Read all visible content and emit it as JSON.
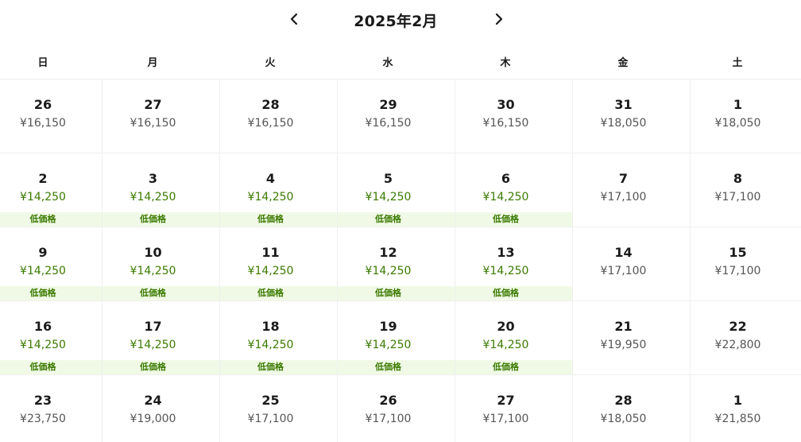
{
  "calendar": {
    "title": "2025年2月",
    "prev_icon": "chevron-left-icon",
    "next_icon": "chevron-right-icon",
    "weekdays": [
      "日",
      "月",
      "火",
      "水",
      "木",
      "金",
      "土"
    ],
    "low_price_label": "低価格",
    "colors": {
      "low_price_text": "#3b7a00",
      "low_price_bg": "#f0f9e6",
      "normal_price_text": "#555555"
    },
    "weeks": [
      [
        {
          "day": "26",
          "price": "¥16,150",
          "low": false
        },
        {
          "day": "27",
          "price": "¥16,150",
          "low": false
        },
        {
          "day": "28",
          "price": "¥16,150",
          "low": false
        },
        {
          "day": "29",
          "price": "¥16,150",
          "low": false
        },
        {
          "day": "30",
          "price": "¥16,150",
          "low": false
        },
        {
          "day": "31",
          "price": "¥18,050",
          "low": false
        },
        {
          "day": "1",
          "price": "¥18,050",
          "low": false
        }
      ],
      [
        {
          "day": "2",
          "price": "¥14,250",
          "low": true
        },
        {
          "day": "3",
          "price": "¥14,250",
          "low": true
        },
        {
          "day": "4",
          "price": "¥14,250",
          "low": true
        },
        {
          "day": "5",
          "price": "¥14,250",
          "low": true
        },
        {
          "day": "6",
          "price": "¥14,250",
          "low": true
        },
        {
          "day": "7",
          "price": "¥17,100",
          "low": false
        },
        {
          "day": "8",
          "price": "¥17,100",
          "low": false
        }
      ],
      [
        {
          "day": "9",
          "price": "¥14,250",
          "low": true
        },
        {
          "day": "10",
          "price": "¥14,250",
          "low": true
        },
        {
          "day": "11",
          "price": "¥14,250",
          "low": true
        },
        {
          "day": "12",
          "price": "¥14,250",
          "low": true
        },
        {
          "day": "13",
          "price": "¥14,250",
          "low": true
        },
        {
          "day": "14",
          "price": "¥17,100",
          "low": false
        },
        {
          "day": "15",
          "price": "¥17,100",
          "low": false
        }
      ],
      [
        {
          "day": "16",
          "price": "¥14,250",
          "low": true
        },
        {
          "day": "17",
          "price": "¥14,250",
          "low": true
        },
        {
          "day": "18",
          "price": "¥14,250",
          "low": true
        },
        {
          "day": "19",
          "price": "¥14,250",
          "low": true
        },
        {
          "day": "20",
          "price": "¥14,250",
          "low": true
        },
        {
          "day": "21",
          "price": "¥19,950",
          "low": false
        },
        {
          "day": "22",
          "price": "¥22,800",
          "low": false
        }
      ],
      [
        {
          "day": "23",
          "price": "¥23,750",
          "low": false
        },
        {
          "day": "24",
          "price": "¥19,000",
          "low": false
        },
        {
          "day": "25",
          "price": "¥17,100",
          "low": false
        },
        {
          "day": "26",
          "price": "¥17,100",
          "low": false
        },
        {
          "day": "27",
          "price": "¥17,100",
          "low": false
        },
        {
          "day": "28",
          "price": "¥18,050",
          "low": false
        },
        {
          "day": "1",
          "price": "¥21,850",
          "low": false
        }
      ]
    ]
  }
}
